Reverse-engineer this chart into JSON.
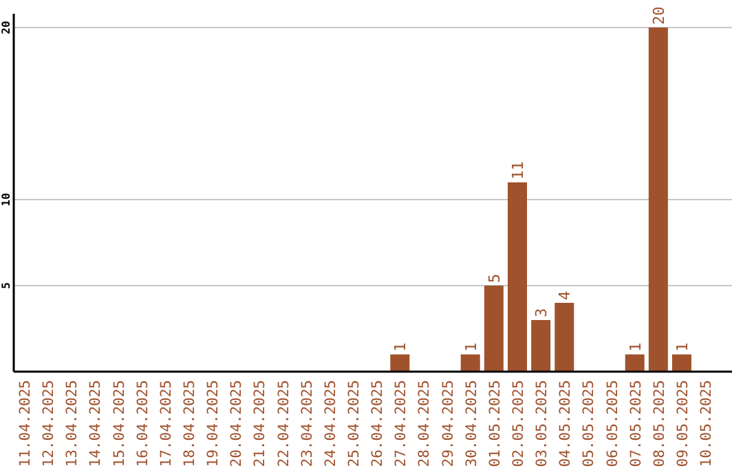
{
  "chart_data": {
    "type": "bar",
    "categories": [
      "11.04.2025",
      "12.04.2025",
      "13.04.2025",
      "14.04.2025",
      "15.04.2025",
      "16.04.2025",
      "17.04.2025",
      "18.04.2025",
      "19.04.2025",
      "20.04.2025",
      "21.04.2025",
      "22.04.2025",
      "23.04.2025",
      "24.04.2025",
      "25.04.2025",
      "26.04.2025",
      "27.04.2025",
      "28.04.2025",
      "29.04.2025",
      "30.04.2025",
      "01.05.2025",
      "02.05.2025",
      "03.05.2025",
      "04.05.2025",
      "05.05.2025",
      "06.05.2025",
      "07.05.2025",
      "08.05.2025",
      "09.05.2025",
      "10.05.2025"
    ],
    "values": [
      0,
      0,
      0,
      0,
      0,
      0,
      0,
      0,
      0,
      0,
      0,
      0,
      0,
      0,
      0,
      0,
      1,
      0,
      0,
      1,
      5,
      11,
      3,
      4,
      0,
      0,
      1,
      20,
      1,
      0
    ],
    "value_labels": [
      null,
      null,
      null,
      null,
      null,
      null,
      null,
      null,
      null,
      null,
      null,
      null,
      null,
      null,
      null,
      null,
      "1",
      null,
      null,
      "1",
      "5",
      "11",
      "3",
      "4",
      null,
      null,
      "1",
      "20",
      "1",
      null
    ],
    "color": "#a0522d",
    "ylim": [
      0,
      20.8
    ],
    "yticks": [
      5,
      10,
      20
    ],
    "grid": "y"
  }
}
